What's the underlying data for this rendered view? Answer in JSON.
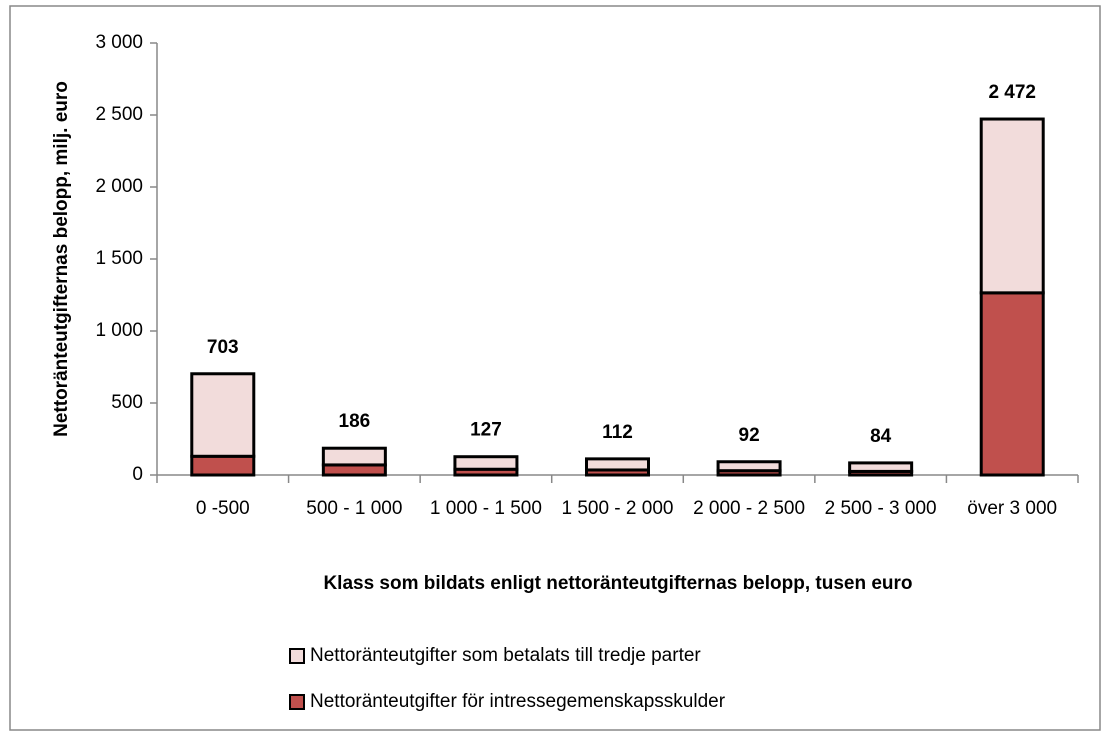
{
  "chart_data": {
    "type": "stacked_bar",
    "y_label": "Nettoränteutgifternas belopp, milj. euro",
    "x_label": "Klass som bildats enligt nettoränteutgifternas belopp, tusen euro",
    "categories": [
      "0 -500",
      "500 - 1 000",
      "1 000 - 1 500",
      "1 500 - 2 000",
      "2 000 - 2 500",
      "2 500 - 3 000",
      "över 3 000"
    ],
    "series": [
      {
        "name": "Nettoränteutgifter för intressegemenskapsskulder",
        "color": "#c0504d",
        "values": [
          130,
          70,
          40,
          35,
          30,
          25,
          1265
        ]
      },
      {
        "name": "Nettoränteutgifter som betalats till tredje parter",
        "color": "#f2dcdb",
        "values": [
          573,
          116,
          87,
          77,
          62,
          59,
          1207
        ]
      }
    ],
    "totals": {
      "values": [
        703,
        186,
        127,
        112,
        92,
        84,
        2472
      ],
      "value_labels": [
        "703",
        "186",
        "127",
        "112",
        "92",
        "84",
        "2 472"
      ]
    },
    "ylim": [
      0,
      3000
    ],
    "yticks": [
      0,
      500,
      {
        "value": 1000,
        "label": "1 000"
      },
      {
        "value": 1500,
        "label": "1 500"
      },
      {
        "value": 2000,
        "label": "2 000"
      },
      {
        "value": 2500,
        "label": "2 500"
      },
      {
        "value": 3000,
        "label": "3 000"
      }
    ],
    "legend": "bottom"
  }
}
